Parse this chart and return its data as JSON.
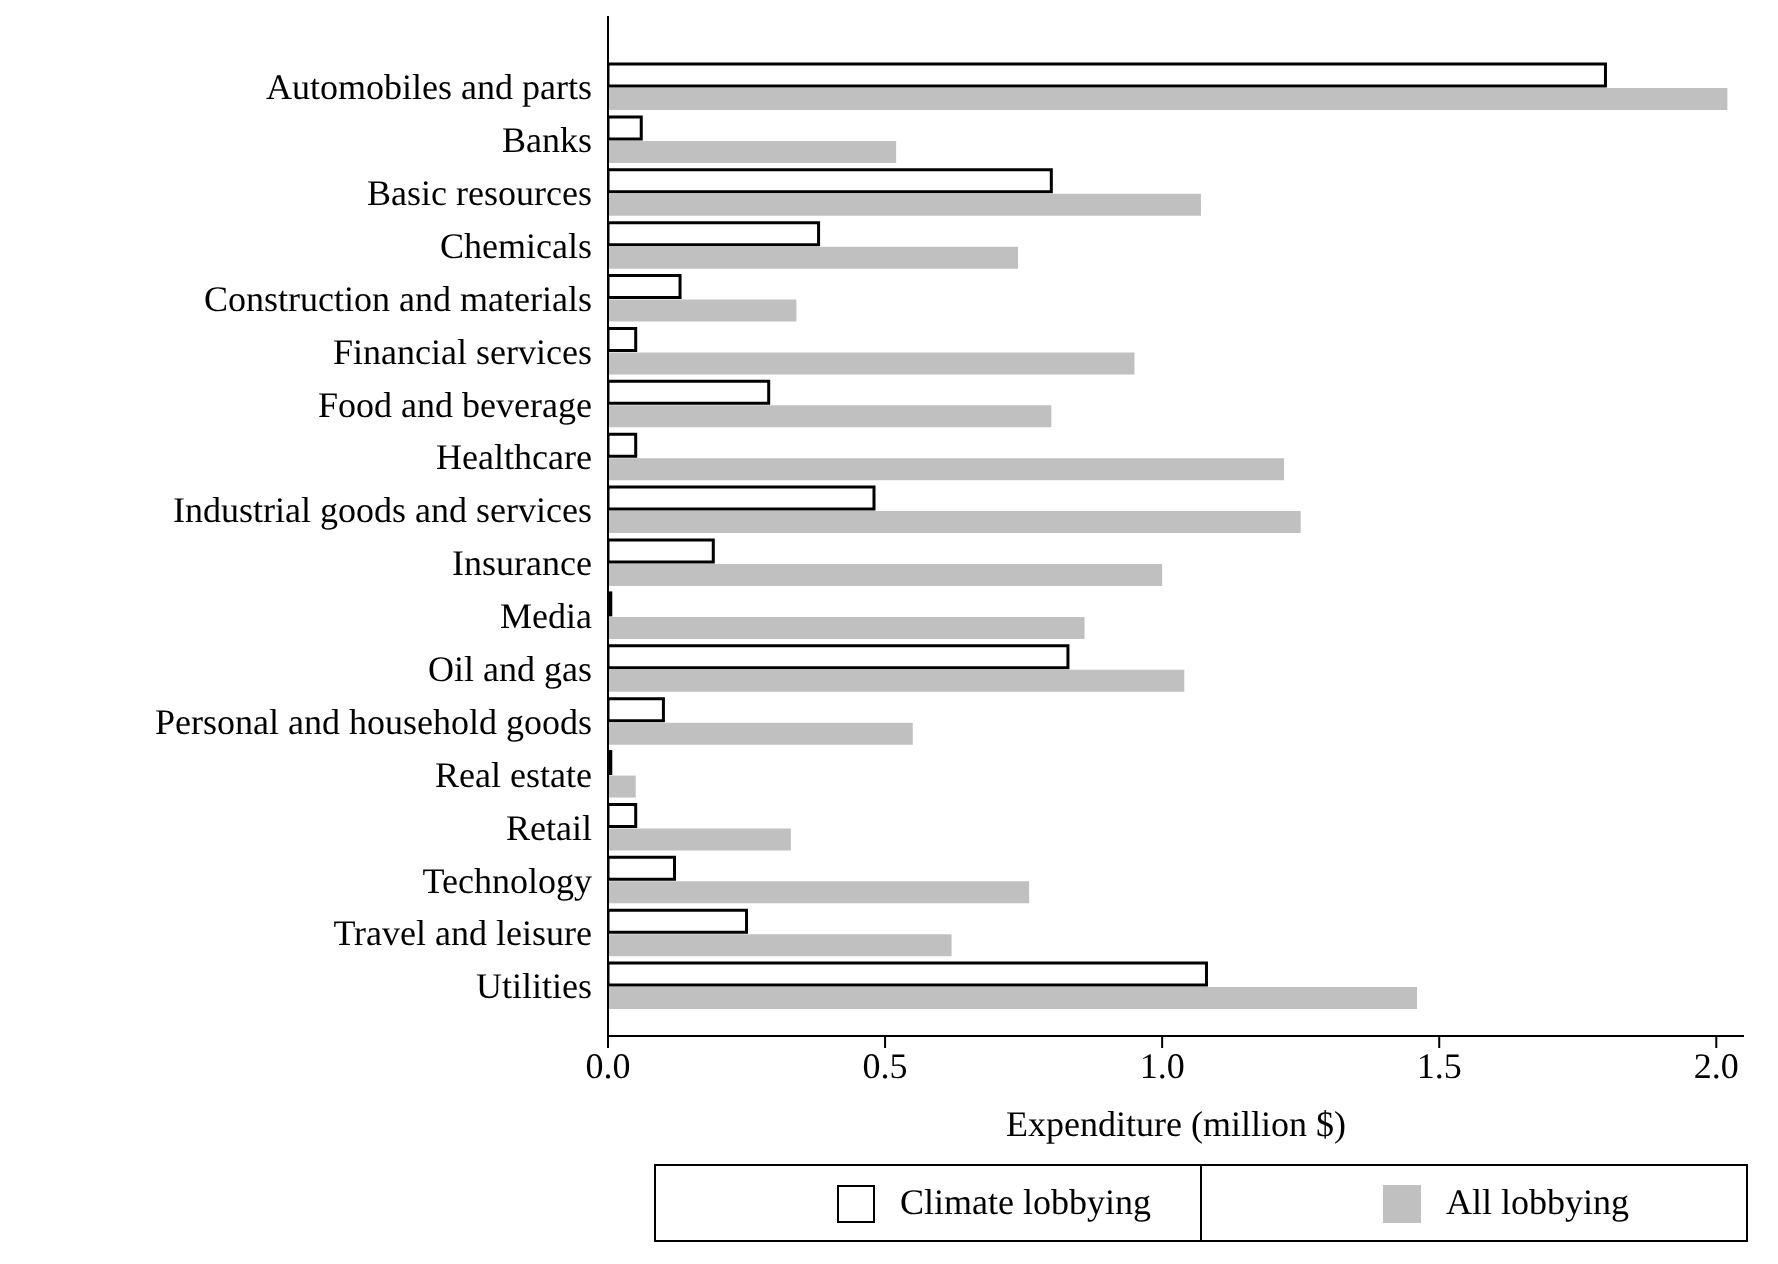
{
  "chart_data": {
    "type": "bar",
    "orientation": "horizontal",
    "xlabel": "Expenditure (million $)",
    "categories": [
      "Automobiles and parts",
      "Banks",
      "Basic resources",
      "Chemicals",
      "Construction and materials",
      "Financial services",
      "Food and beverage",
      "Healthcare",
      "Industrial goods and services",
      "Insurance",
      "Media",
      "Oil and gas",
      "Personal and household goods",
      "Real estate",
      "Retail",
      "Technology",
      "Travel and leisure",
      "Utilities"
    ],
    "series": [
      {
        "name": "Climate lobbying",
        "color": "#ffffff",
        "values": [
          1.8,
          0.06,
          0.8,
          0.38,
          0.13,
          0.05,
          0.29,
          0.05,
          0.48,
          0.19,
          0.005,
          0.83,
          0.1,
          0.005,
          0.05,
          0.12,
          0.25,
          1.08
        ]
      },
      {
        "name": "All lobbying",
        "color": "#c0c0c0",
        "values": [
          2.02,
          0.52,
          1.07,
          0.74,
          0.34,
          0.95,
          0.8,
          1.22,
          1.25,
          1.0,
          0.86,
          1.04,
          0.55,
          0.05,
          0.33,
          0.76,
          0.62,
          1.46
        ]
      }
    ],
    "xlim": [
      0,
      2.05
    ],
    "xticks": [
      {
        "value": 0,
        "label": "0.0"
      },
      {
        "value": 0.5,
        "label": "0.5"
      },
      {
        "value": 1,
        "label": "1.0"
      },
      {
        "value": 1.5,
        "label": "1.5"
      },
      {
        "value": 2,
        "label": "2.0"
      }
    ],
    "grid": false,
    "legend": "bottom"
  }
}
